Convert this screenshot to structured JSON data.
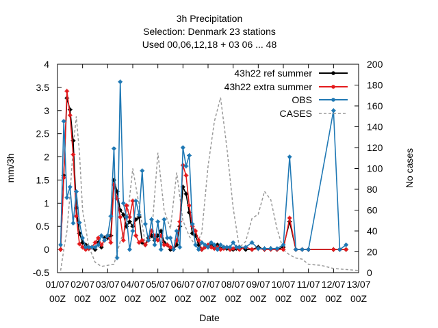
{
  "chart_data": {
    "type": "line",
    "title_lines": [
      "3h Precipitation",
      "Selection: Denmark      23 stations",
      "Used  00,06,12,18  + 03 06 ... 48"
    ],
    "xlabel": "Date",
    "ylabel": "mm/3h",
    "y2label": "No cases",
    "xlim": [
      0,
      12
    ],
    "ylim": [
      -0.5,
      4
    ],
    "y2lim": [
      0,
      200
    ],
    "grid": false,
    "legend_position": "top-right",
    "x_ticks": [
      {
        "x": 0,
        "l1": "01/07",
        "l2": "00Z"
      },
      {
        "x": 1,
        "l1": "02/07",
        "l2": "00Z"
      },
      {
        "x": 2,
        "l1": "03/07",
        "l2": "00Z"
      },
      {
        "x": 3,
        "l1": "04/07",
        "l2": "00Z"
      },
      {
        "x": 4,
        "l1": "05/07",
        "l2": "00Z"
      },
      {
        "x": 5,
        "l1": "06/07",
        "l2": "00Z"
      },
      {
        "x": 6,
        "l1": "07/07",
        "l2": "00Z"
      },
      {
        "x": 7,
        "l1": "08/07",
        "l2": "00Z"
      },
      {
        "x": 8,
        "l1": "09/07",
        "l2": "00Z"
      },
      {
        "x": 9,
        "l1": "10/07",
        "l2": "00Z"
      },
      {
        "x": 10,
        "l1": "11/07",
        "l2": "00Z"
      },
      {
        "x": 11,
        "l1": "12/07",
        "l2": "00Z"
      },
      {
        "x": 12,
        "l1": "13/07",
        "l2": "00Z"
      }
    ],
    "y_ticks": [
      "-0.5",
      "0",
      "0.5",
      "1",
      "1.5",
      "2",
      "2.5",
      "3",
      "3.5",
      "4"
    ],
    "y2_ticks": [
      "0",
      "20",
      "40",
      "60",
      "80",
      "100",
      "120",
      "140",
      "160",
      "180",
      "200"
    ],
    "legend": [
      "43h22 ref summer",
      "43h22 extra summer",
      "OBS",
      "CASES"
    ],
    "series": [
      {
        "name": "43h22 ref summer",
        "color": "#000000",
        "axis": "y1",
        "x": [
          0.125,
          0.25,
          0.375,
          0.5,
          0.625,
          0.75,
          0.875,
          1.0,
          1.125,
          1.25,
          1.375,
          1.5,
          1.625,
          1.75,
          1.875,
          2.0,
          2.125,
          2.25,
          2.375,
          2.5,
          2.625,
          2.75,
          2.875,
          3.0,
          3.125,
          3.25,
          3.375,
          3.5,
          3.625,
          3.75,
          3.875,
          4.0,
          4.125,
          4.25,
          4.375,
          4.5,
          4.625,
          4.75,
          4.875,
          5.0,
          5.125,
          5.25,
          5.375,
          5.5,
          5.625,
          5.75,
          5.875,
          6.0,
          6.125,
          6.25,
          6.375,
          6.5,
          6.625,
          6.75,
          6.875,
          7.0,
          7.125,
          7.25,
          7.5,
          7.75,
          8.0,
          8.25,
          8.5,
          8.75,
          9.0,
          9.25,
          9.5,
          9.75,
          10.0,
          11.0,
          11.25,
          11.5
        ],
        "y": [
          0.0,
          1.6,
          3.27,
          3.02,
          2.35,
          0.9,
          0.35,
          0.15,
          0.1,
          0.02,
          0.05,
          0.0,
          0.15,
          0.05,
          0.25,
          0.25,
          0.3,
          1.5,
          1.25,
          0.85,
          0.75,
          0.5,
          0.6,
          0.5,
          0.65,
          0.7,
          0.15,
          0.1,
          0.25,
          0.3,
          0.2,
          0.3,
          0.4,
          0.15,
          0.1,
          0.0,
          0.0,
          0.1,
          0.5,
          1.35,
          1.2,
          0.8,
          0.35,
          0.3,
          0.1,
          0.0,
          0.05,
          0.08,
          0.12,
          0.05,
          0.1,
          0.02,
          0.05,
          0.02,
          0.0,
          0.0,
          0.02,
          0.05,
          0.0,
          0.0,
          0.05,
          0.0,
          0.02,
          0.0,
          0.05,
          0.6,
          0.0,
          0.0,
          0.0,
          0.0,
          0.0,
          0.0
        ]
      },
      {
        "name": "43h22 extra summer",
        "color": "#e41a1c",
        "axis": "y1",
        "x": [
          0.125,
          0.25,
          0.375,
          0.5,
          0.625,
          0.75,
          0.875,
          1.0,
          1.125,
          1.25,
          1.375,
          1.5,
          1.625,
          1.75,
          1.875,
          2.0,
          2.125,
          2.25,
          2.375,
          2.5,
          2.625,
          2.75,
          2.875,
          3.0,
          3.125,
          3.25,
          3.375,
          3.5,
          3.625,
          3.75,
          3.875,
          4.0,
          4.125,
          4.25,
          4.375,
          4.5,
          4.625,
          4.75,
          4.875,
          5.0,
          5.125,
          5.25,
          5.375,
          5.5,
          5.625,
          5.75,
          5.875,
          6.0,
          6.125,
          6.25,
          6.375,
          6.5,
          6.625,
          6.75,
          6.875,
          7.0,
          7.125,
          7.25,
          7.5,
          7.75,
          8.0,
          8.25,
          8.5,
          8.75,
          9.0,
          9.25,
          9.5,
          9.75,
          10.0,
          11.0,
          11.25,
          11.5
        ],
        "y": [
          0.0,
          1.55,
          3.42,
          2.9,
          2.05,
          0.72,
          0.12,
          0.05,
          0.0,
          0.02,
          0.05,
          0.15,
          0.25,
          0.1,
          0.2,
          0.3,
          0.15,
          1.4,
          1.1,
          0.7,
          0.2,
          0.95,
          0.7,
          1.05,
          0.3,
          0.15,
          0.2,
          0.1,
          0.2,
          0.4,
          0.3,
          0.2,
          0.3,
          0.1,
          0.1,
          0.05,
          0.0,
          0.2,
          0.6,
          1.82,
          1.6,
          0.95,
          0.5,
          0.4,
          0.2,
          0.0,
          0.05,
          0.1,
          0.05,
          0.02,
          0.05,
          0.0,
          0.02,
          0.05,
          0.0,
          0.02,
          0.05,
          0.0,
          0.05,
          0.0,
          0.02,
          0.0,
          0.0,
          0.0,
          0.0,
          0.68,
          0.0,
          0.0,
          0.0,
          0.0,
          0.0,
          0.0
        ]
      },
      {
        "name": "OBS",
        "color": "#1f78b4",
        "axis": "y1",
        "x": [
          0.125,
          0.25,
          0.375,
          0.5,
          0.625,
          0.75,
          0.875,
          1.0,
          1.125,
          1.25,
          1.375,
          1.5,
          1.625,
          1.75,
          1.875,
          2.0,
          2.125,
          2.25,
          2.375,
          2.5,
          2.625,
          2.75,
          2.875,
          3.0,
          3.125,
          3.25,
          3.375,
          3.5,
          3.625,
          3.75,
          3.875,
          4.0,
          4.125,
          4.25,
          4.375,
          4.5,
          4.625,
          4.75,
          4.875,
          5.0,
          5.125,
          5.25,
          5.375,
          5.5,
          5.625,
          5.75,
          5.875,
          6.0,
          6.125,
          6.25,
          6.375,
          6.5,
          6.625,
          6.75,
          6.875,
          7.0,
          7.125,
          7.25,
          7.5,
          7.75,
          8.0,
          8.25,
          8.5,
          8.75,
          9.0,
          9.25,
          9.5,
          9.75,
          10.0,
          11.0,
          11.25,
          11.5
        ],
        "y": [
          0.1,
          2.77,
          1.12,
          1.35,
          0.57,
          1.25,
          0.58,
          0.25,
          0.05,
          0.05,
          0.05,
          0.05,
          0.1,
          0.3,
          0.2,
          0.3,
          0.72,
          2.18,
          -0.18,
          3.62,
          1.0,
          0.7,
          0.0,
          0.4,
          1.05,
          0.75,
          1.7,
          0.55,
          0.2,
          0.65,
          0.1,
          0.6,
          0.0,
          0.65,
          0.25,
          0.25,
          0.0,
          0.4,
          0.05,
          2.2,
          1.8,
          2.03,
          0.55,
          0.1,
          0.0,
          0.15,
          0.1,
          0.05,
          0.15,
          0.1,
          0.0,
          0.1,
          0.05,
          0.05,
          0.05,
          0.15,
          0.05,
          0.05,
          0.05,
          0.15,
          0.02,
          0.02,
          0.02,
          0.02,
          0.1,
          2.0,
          0.0,
          0.0,
          0.0,
          3.0,
          0.0,
          0.1
        ]
      },
      {
        "name": "CASES",
        "color": "#999999",
        "axis": "y2",
        "dashed": true,
        "x": [
          0.125,
          0.25,
          0.375,
          0.5,
          0.625,
          0.75,
          0.875,
          1.0,
          1.25,
          1.5,
          1.75,
          2.0,
          2.25,
          2.5,
          2.75,
          3.0,
          3.25,
          3.5,
          3.75,
          4.0,
          4.25,
          4.5,
          4.75,
          5.0,
          5.25,
          5.5,
          5.75,
          6.0,
          6.25,
          6.5,
          6.75,
          7.0,
          7.25,
          7.5,
          7.75,
          8.0,
          8.25,
          8.5,
          8.75,
          9.0,
          9.25,
          9.5,
          9.75,
          10.0,
          10.5,
          11.0,
          11.5,
          12.0
        ],
        "y": [
          2,
          22,
          40,
          75,
          120,
          150,
          115,
          60,
          25,
          10,
          6,
          7,
          8,
          30,
          45,
          100,
          65,
          28,
          36,
          115,
          60,
          42,
          96,
          50,
          35,
          26,
          38,
          102,
          145,
          168,
          120,
          62,
          24,
          30,
          52,
          56,
          78,
          70,
          42,
          22,
          17,
          14,
          13,
          8,
          7,
          4,
          3,
          2
        ]
      }
    ]
  }
}
